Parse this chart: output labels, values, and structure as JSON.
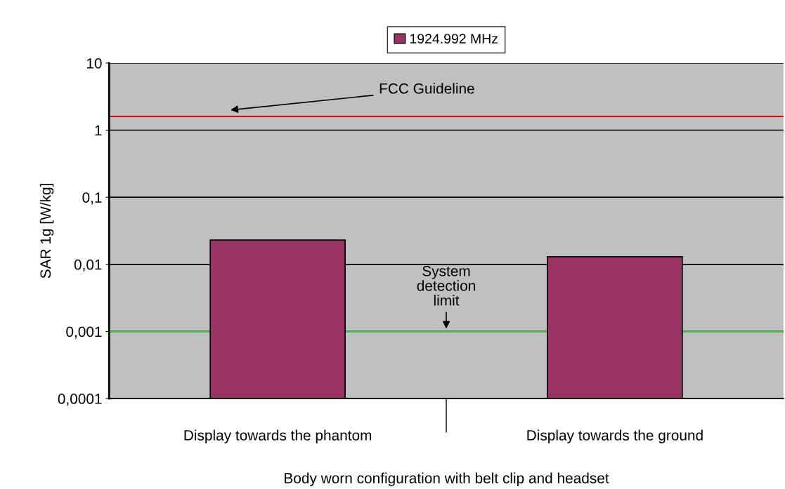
{
  "chart_data": {
    "type": "bar",
    "categories": [
      "Display towards the phantom",
      "Display towards the ground"
    ],
    "series": [
      {
        "name": "1924.992 MHz",
        "color": "#993366",
        "values": [
          0.023,
          0.013
        ]
      }
    ],
    "xlabel": "Body worn configuration with belt clip and headset",
    "ylabel": "SAR 1g [W/kg]",
    "log": true,
    "ylim": [
      0.0001,
      10
    ],
    "yticks": [
      {
        "value": 0.0001,
        "label": "0,0001"
      },
      {
        "value": 0.001,
        "label": "0,001"
      },
      {
        "value": 0.01,
        "label": "0,01"
      },
      {
        "value": 0.1,
        "label": "0,1"
      },
      1,
      10
    ],
    "grid": "y",
    "legend": "top",
    "ref_lines": [
      {
        "axis": "y",
        "value": 1.6,
        "label": "FCC Guideline",
        "color": "#ff0000"
      },
      {
        "axis": "y",
        "value": 0.001,
        "label": "System\ndetection\nlimit",
        "color": "#33cc33"
      }
    ]
  }
}
